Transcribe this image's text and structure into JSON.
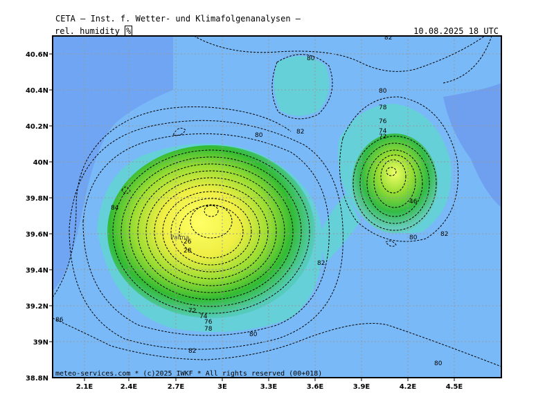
{
  "header": {
    "title": "CETA — Inst. f. Wetter- und Klimafolgenanalysen —",
    "variable": "rel. humidity",
    "unit": "%",
    "valid_time": "10.08.2025 18 UTC"
  },
  "footer": {
    "credit": "meteo-services.com * (c)2025 IWKF * All rights reserved (00+018)"
  },
  "map": {
    "lat_ticks": [
      "40.6N",
      "40.4N",
      "40.2N",
      "40N",
      "39.8N",
      "39.6N",
      "39.4N",
      "39.2N",
      "39N",
      "38.8N"
    ],
    "lon_ticks": [
      "2.1E",
      "2.4E",
      "2.7E",
      "3E",
      "3.3E",
      "3.6E",
      "3.9E",
      "4.2E",
      "4.5E"
    ],
    "place_label": "Palma",
    "colors": {
      "sea_blue": "#79b9f7",
      "deep_blue": "#6f9ff0",
      "teal": "#66d0d8",
      "green": "#33bb33",
      "yellow": "#ffff66"
    },
    "contour_labels": [
      "80",
      "82",
      "84",
      "86",
      "80",
      "82",
      "82",
      "80",
      "80",
      "82",
      "76",
      "78",
      "74",
      "72",
      "80",
      "82",
      "26",
      "28",
      "72",
      "74",
      "76",
      "78",
      "46",
      "80"
    ]
  }
}
